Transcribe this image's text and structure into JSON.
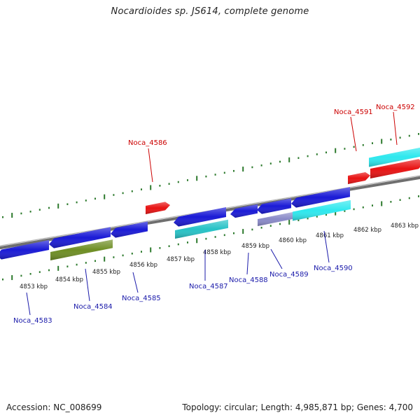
{
  "title": "Nocardioides sp. JS614, complete genome",
  "footer": {
    "accession": "Accession: NC_008699",
    "summary": "Topology: circular; Length: 4,985,871 bp; Genes: 4,700"
  },
  "colors": {
    "backbone": "#8a8a8a",
    "tick": "#2d7a2d",
    "forward_label": "#cc0000",
    "reverse_label": "#1a1aaa",
    "blue": "#1a1ad6",
    "cyan": "#2ee8ee",
    "red": "#e81212",
    "olive": "#6e8e24",
    "teal": "#26c2c6",
    "slate": "#8a8ac8"
  },
  "kbp_ticks": [
    "4853 kbp",
    "4854 kbp",
    "4855 kbp",
    "4856 kbp",
    "4857 kbp",
    "4858 kbp",
    "4859 kbp",
    "4860 kbp",
    "4861 kbp",
    "4862 kbp",
    "4863 kbp"
  ],
  "genes": [
    {
      "label": "Noca_4583",
      "strand": "-"
    },
    {
      "label": "Noca_4584",
      "strand": "-"
    },
    {
      "label": "Noca_4585",
      "strand": "-"
    },
    {
      "label": "Noca_4586",
      "strand": "+"
    },
    {
      "label": "Noca_4587",
      "strand": "-"
    },
    {
      "label": "Noca_4588",
      "strand": "-"
    },
    {
      "label": "Noca_4589",
      "strand": "-"
    },
    {
      "label": "Noca_4590",
      "strand": "-"
    },
    {
      "label": "Noca_4591",
      "strand": "+"
    },
    {
      "label": "Noca_4592",
      "strand": "+"
    }
  ]
}
